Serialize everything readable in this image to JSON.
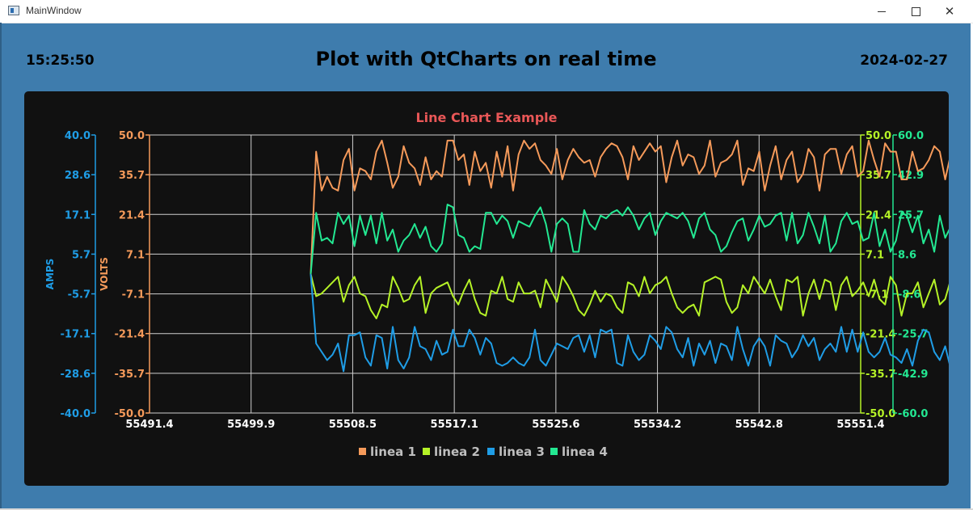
{
  "window": {
    "title": "MainWindow"
  },
  "header": {
    "time": "15:25:50",
    "title": "Plot with QtCharts on real time",
    "date": "2024-02-27"
  },
  "colors": {
    "linea1": "#f59a5a",
    "linea2": "#b5f227",
    "linea3": "#1f9de6",
    "linea4": "#23e892",
    "title": "#e95757",
    "background": "#111111",
    "window": "#3e7cad"
  },
  "chart_data": {
    "type": "line",
    "title": "Line Chart Example",
    "xlim": [
      55491.4,
      55551.4
    ],
    "x_ticks": [
      "55491.4",
      "55499.9",
      "55508.5",
      "55517.1",
      "55525.6",
      "55534.2",
      "55542.8",
      "55551.4"
    ],
    "axes": [
      {
        "name": "amps",
        "label": "AMPS",
        "position": "left-outer",
        "range": [
          -40,
          40
        ],
        "ticks": [
          "40.0",
          "28.6",
          "17.1",
          "5.7",
          "-5.7",
          "-17.1",
          "-28.6",
          "-40.0"
        ]
      },
      {
        "name": "volts",
        "label": "VOLTS",
        "position": "left-inner",
        "range": [
          -50,
          50
        ],
        "ticks": [
          "50.0",
          "35.7",
          "21.4",
          "7.1",
          "-7.1",
          "-21.4",
          "-35.7",
          "-50.0"
        ]
      },
      {
        "name": "right1",
        "label": "",
        "position": "right-inner",
        "range": [
          -50,
          50
        ],
        "ticks": [
          "50.0",
          "35.7",
          "21.4",
          "7.1",
          "-7.1",
          "-21.4",
          "-35.7",
          "-50.0"
        ]
      },
      {
        "name": "right2",
        "label": "",
        "position": "right-outer",
        "range": [
          -60,
          60
        ],
        "ticks": [
          "60.0",
          "42.9",
          "25.7",
          "8.6",
          "-8.6",
          "-25.7",
          "-42.9",
          "-60.0"
        ]
      }
    ],
    "series": [
      {
        "name": "linea 1",
        "color": "#f59a5a",
        "x0": 55505.0,
        "dx": 0.4615,
        "values": [
          0,
          44,
          30,
          35,
          31,
          30,
          41,
          45,
          30,
          38,
          37,
          34,
          44,
          48,
          40,
          31,
          35,
          46,
          40,
          38,
          32,
          42,
          34,
          37,
          35,
          48,
          48,
          41,
          43,
          32,
          44,
          37,
          40,
          31,
          44,
          35,
          46,
          30,
          43,
          48,
          45,
          47,
          41,
          39,
          36,
          45,
          34,
          41,
          45,
          42,
          40,
          41,
          35,
          42,
          45,
          47,
          46,
          42,
          34,
          46,
          41,
          44,
          47,
          44,
          46,
          33,
          42,
          48,
          39,
          43,
          42,
          36,
          39,
          48,
          35,
          40,
          41,
          43,
          48,
          32,
          38,
          37,
          44,
          30,
          39,
          46,
          34,
          41,
          44,
          33,
          36,
          45,
          42,
          30,
          43,
          45,
          45,
          36,
          43,
          46,
          35,
          37,
          48,
          41,
          35,
          47,
          44,
          44,
          34,
          34,
          44,
          37,
          38,
          41,
          46,
          44,
          34,
          43,
          41,
          41,
          33,
          44,
          47,
          37,
          35,
          42,
          48,
          47,
          45,
          30,
          32,
          48,
          45,
          44,
          42,
          45,
          48
        ]
      },
      {
        "name": "linea 2",
        "color": "#b5f227",
        "x0": 55505.0,
        "dx": 0.4615,
        "values": [
          0,
          -8,
          -7,
          -5,
          -3,
          -1,
          -10,
          -4,
          -1,
          -7,
          -8,
          -13,
          -16,
          -11,
          -12,
          -1,
          -5,
          -10,
          -9,
          -4,
          -1,
          -14,
          -7,
          -5,
          -4,
          -3,
          -8,
          -11,
          -6,
          -2,
          -9,
          -14,
          -15,
          -6,
          -7,
          -1,
          -9,
          -10,
          -3,
          -7,
          -7,
          -6,
          -12,
          -2,
          -6,
          -10,
          -1,
          -4,
          -8,
          -13,
          -15,
          -11,
          -6,
          -10,
          -7,
          -8,
          -12,
          -14,
          -3,
          -4,
          -8,
          -1,
          -7,
          -4,
          -3,
          -1,
          -7,
          -12,
          -14,
          -12,
          -11,
          -15,
          -3,
          -2,
          -1,
          -2,
          -10,
          -14,
          -12,
          -4,
          -7,
          -1,
          -4,
          -7,
          -2,
          -8,
          -13,
          -2,
          -3,
          -1,
          -15,
          -7,
          -2,
          -9,
          -2,
          -3,
          -13,
          -4,
          -1,
          -8,
          -6,
          -3,
          -8,
          -2,
          -9,
          -11,
          -1,
          -4,
          -15,
          -7,
          -7,
          -3,
          -12,
          -7,
          -2,
          -11,
          -9,
          -2,
          -1,
          -1,
          -10,
          -3,
          -4,
          -1,
          -9,
          -3,
          -2,
          -10,
          -12,
          -2,
          -11,
          -13,
          -8,
          -3,
          -9,
          -2,
          -1,
          -9,
          -10,
          -13,
          -15
        ]
      },
      {
        "name": "linea 3",
        "color": "#1f9de6",
        "x0": 55505.0,
        "dx": 0.4615,
        "values": [
          0,
          -25,
          -28,
          -31,
          -29,
          -25,
          -35,
          -22,
          -22,
          -21,
          -30,
          -33,
          -22,
          -23,
          -34,
          -19,
          -31,
          -34,
          -30,
          -19,
          -26,
          -27,
          -31,
          -24,
          -29,
          -28,
          -20,
          -26,
          -26,
          -20,
          -23,
          -29,
          -23,
          -25,
          -32,
          -33,
          -32,
          -30,
          -32,
          -33,
          -30,
          -20,
          -31,
          -33,
          -29,
          -25,
          -26,
          -27,
          -23,
          -22,
          -28,
          -22,
          -30,
          -20,
          -21,
          -20,
          -32,
          -33,
          -22,
          -28,
          -31,
          -29,
          -22,
          -24,
          -27,
          -19,
          -21,
          -27,
          -30,
          -23,
          -33,
          -25,
          -29,
          -24,
          -32,
          -25,
          -26,
          -31,
          -19,
          -27,
          -33,
          -26,
          -23,
          -26,
          -33,
          -22,
          -24,
          -25,
          -30,
          -27,
          -22,
          -26,
          -23,
          -31,
          -27,
          -25,
          -28,
          -19,
          -28,
          -20,
          -28,
          -21,
          -28,
          -30,
          -28,
          -23,
          -29,
          -30,
          -32,
          -27,
          -33,
          -24,
          -20,
          -21,
          -28,
          -31,
          -26,
          -34,
          -31,
          -21,
          -24,
          -26,
          -22,
          -19,
          -22,
          -27,
          -26,
          -33,
          -24,
          -27,
          -34,
          -30,
          -29,
          -33,
          -23,
          -33,
          -27,
          -26,
          -22,
          -27,
          -25
        ]
      },
      {
        "name": "linea 4",
        "color": "#23e892",
        "x0": 55505.0,
        "dx": 0.4615,
        "values": [
          0,
          22,
          12,
          13,
          11,
          22,
          18,
          21,
          10,
          21,
          14,
          21,
          11,
          22,
          12,
          16,
          8,
          12,
          14,
          18,
          13,
          17,
          10,
          8,
          11,
          25,
          24,
          14,
          13,
          8,
          10,
          9,
          22,
          22,
          18,
          21,
          19,
          13,
          19,
          18,
          17,
          21,
          24,
          18,
          8,
          18,
          20,
          18,
          8,
          8,
          23,
          18,
          16,
          21,
          20,
          22,
          23,
          21,
          24,
          21,
          16,
          20,
          22,
          14,
          19,
          22,
          21,
          20,
          22,
          19,
          13,
          20,
          22,
          16,
          14,
          8,
          10,
          15,
          19,
          20,
          12,
          16,
          21,
          17,
          18,
          21,
          22,
          12,
          22,
          11,
          14,
          22,
          17,
          11,
          21,
          8,
          11,
          19,
          22,
          18,
          19,
          12,
          13,
          22,
          10,
          16,
          8,
          12,
          22,
          21,
          15,
          21,
          11,
          16,
          8,
          21,
          13,
          17,
          21,
          9,
          22,
          19,
          20,
          18,
          17,
          13,
          18,
          20,
          21,
          22,
          19,
          12,
          22,
          23,
          14,
          20,
          22,
          21,
          12
        ]
      }
    ],
    "legend": {
      "position": "bottom",
      "items": [
        "linea 1",
        "linea 2",
        "linea 3",
        "linea 4"
      ]
    },
    "grid": true
  }
}
